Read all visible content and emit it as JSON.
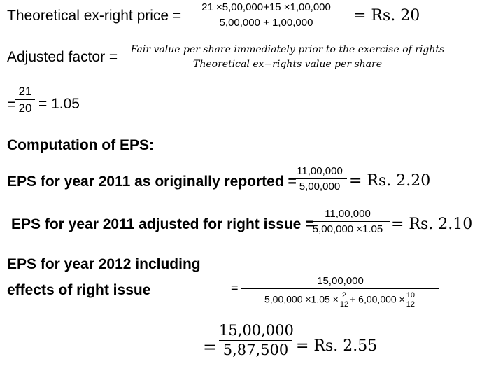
{
  "ter": {
    "label": "Theoretical ex-right price =",
    "numerator": "21 ×5,00,000+15 ×1,00,000",
    "denominator": "5,00,000 +  1,00,000",
    "result": "= Rs. 20"
  },
  "adj": {
    "label": "Adjusted factor =",
    "numerator": "Fair value per share immediately prior to the exercise of rights",
    "denominator": "Theoretical ex−rights value per share"
  },
  "ratio": {
    "prefix": "=",
    "numerator": "21",
    "denominator": "20",
    "result": "= 1.05"
  },
  "heading": "Computation of EPS:",
  "eps2011": {
    "label": "EPS for year 2011 as originally reported =",
    "numerator": "11,00,000",
    "denominator": "5,00,000",
    "result": "= Rs.  2.20"
  },
  "eps2011adj": {
    "label": "EPS for year 2011 adjusted for right issue =",
    "numerator": "11,00,000",
    "denominator": "5,00,000 ×1.05",
    "result": "= Rs.  2.10"
  },
  "eps2012": {
    "label_line1": "EPS for year 2012 including",
    "label_line2": "effects of right issue",
    "eq": "=",
    "numerator": "15,00,000",
    "den_part1": "5,00,000 ×1.05 ×",
    "frac1_num": "2",
    "frac1_den": "12",
    "den_part2": "+ 6,00,000 ×",
    "frac2_num": "10",
    "frac2_den": "12"
  },
  "final": {
    "eq": "=",
    "numerator": "15,00,000",
    "denominator": "5,87,500",
    "result": "= Rs.  2.55"
  }
}
